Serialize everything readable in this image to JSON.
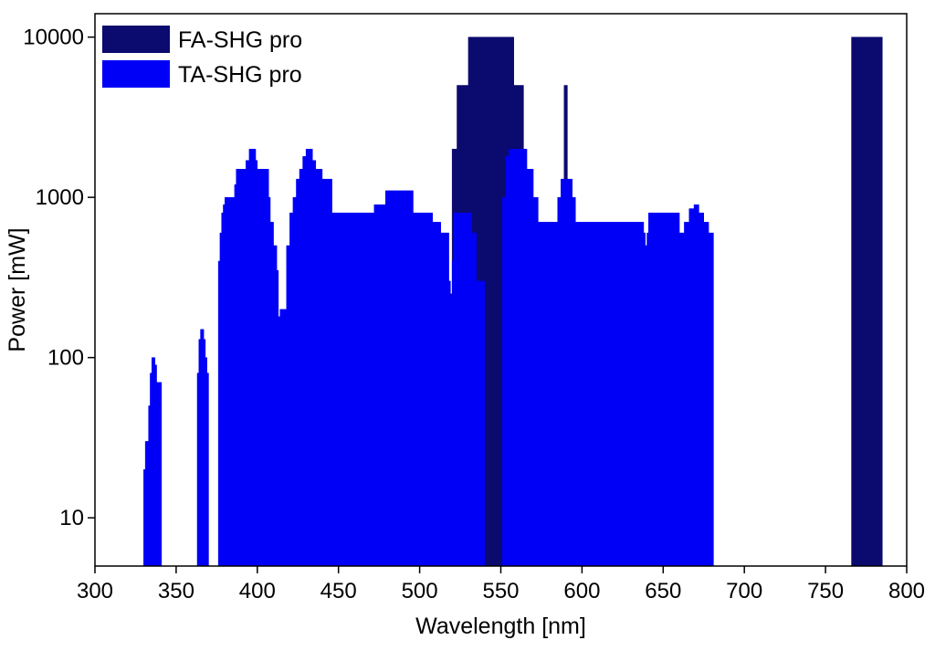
{
  "chart_data": {
    "type": "area",
    "title": "",
    "xlabel": "Wavelength [nm]",
    "ylabel": "Power [mW]",
    "xlim": [
      300,
      800
    ],
    "ylim": [
      5,
      14000
    ],
    "yscale": "log",
    "grid": false,
    "legend_position": "top-left",
    "x_ticks": [
      300,
      350,
      400,
      450,
      500,
      550,
      600,
      650,
      700,
      750,
      800
    ],
    "x_tick_labels": [
      "300",
      "350",
      "400",
      "450",
      "500",
      "550",
      "600",
      "650",
      "700",
      "750",
      "800"
    ],
    "y_ticks": [
      10,
      100,
      1000,
      10000
    ],
    "y_tick_labels": [
      "10",
      "100",
      "1000",
      "10000"
    ],
    "series": [
      {
        "name": "FA-SHG pro",
        "color": "#0b0a6e",
        "segments": [
          [
            [
              520,
              2000
            ],
            [
              523,
              5000
            ],
            [
              526,
              5000
            ],
            [
              530,
              10000
            ],
            [
              555,
              10000
            ],
            [
              558,
              5000
            ],
            [
              561,
              5000
            ],
            [
              564,
              2000
            ],
            [
              566,
              800
            ],
            [
              570,
              800
            ]
          ],
          [
            [
              588,
              1300
            ],
            [
              589,
              5000
            ],
            [
              590,
              5000
            ],
            [
              591,
              1300
            ]
          ],
          [
            [
              766,
              10000
            ],
            [
              785,
              10000
            ]
          ]
        ]
      },
      {
        "name": "TA-SHG pro",
        "color": "#0000f6",
        "segments": [
          [
            [
              330,
              20
            ],
            [
              331,
              30
            ],
            [
              333,
              50
            ],
            [
              334,
              80
            ],
            [
              335,
              100
            ],
            [
              336,
              100
            ],
            [
              337,
              90
            ],
            [
              338,
              70
            ],
            [
              340,
              70
            ],
            [
              341,
              5
            ]
          ],
          [
            [
              363,
              80
            ],
            [
              364,
              130
            ],
            [
              365,
              150
            ],
            [
              366,
              150
            ],
            [
              367,
              130
            ],
            [
              368,
              100
            ],
            [
              369,
              80
            ],
            [
              370,
              5
            ]
          ],
          [
            [
              376,
              400
            ],
            [
              377,
              600
            ],
            [
              378,
              800
            ],
            [
              379,
              900
            ],
            [
              380,
              1000
            ],
            [
              385,
              1000
            ],
            [
              386,
              1200
            ],
            [
              387,
              1500
            ],
            [
              390,
              1500
            ],
            [
              393,
              1700
            ],
            [
              395,
              2000
            ],
            [
              397,
              2000
            ],
            [
              399,
              1700
            ],
            [
              400,
              1500
            ],
            [
              406,
              1500
            ],
            [
              407,
              1000
            ],
            [
              408,
              700
            ],
            [
              410,
              500
            ],
            [
              412,
              350
            ],
            [
              413,
              180
            ],
            [
              414,
              200
            ],
            [
              416,
              200
            ],
            [
              418,
              500
            ],
            [
              420,
              800
            ],
            [
              422,
              1000
            ],
            [
              424,
              1300
            ],
            [
              426,
              1500
            ],
            [
              428,
              1800
            ],
            [
              430,
              2000
            ],
            [
              432,
              2000
            ],
            [
              434,
              1700
            ],
            [
              436,
              1500
            ],
            [
              440,
              1300
            ],
            [
              445,
              1300
            ],
            [
              446,
              800
            ],
            [
              470,
              800
            ],
            [
              472,
              900
            ],
            [
              476,
              900
            ],
            [
              479,
              1100
            ],
            [
              496,
              1100
            ],
            [
              496,
              800
            ],
            [
              506,
              800
            ],
            [
              508,
              700
            ],
            [
              512,
              700
            ],
            [
              513,
              600
            ],
            [
              516,
              600
            ],
            [
              518,
              300
            ],
            [
              519,
              250
            ],
            [
              520,
              400
            ],
            [
              521,
              800
            ],
            [
              531,
              800
            ],
            [
              532,
              600
            ],
            [
              535,
              300
            ],
            [
              538,
              300
            ],
            [
              540,
              5
            ]
          ],
          [
            [
              550,
              5
            ],
            [
              551,
              1000
            ],
            [
              553,
              1800
            ],
            [
              555,
              2000
            ],
            [
              563,
              2000
            ],
            [
              566,
              1500
            ],
            [
              570,
              1000
            ],
            [
              573,
              700
            ],
            [
              583,
              700
            ],
            [
              585,
              1000
            ],
            [
              587,
              1300
            ],
            [
              593,
              1300
            ],
            [
              594,
              1000
            ],
            [
              596,
              700
            ],
            [
              637,
              700
            ],
            [
              638,
              600
            ],
            [
              639,
              500
            ],
            [
              640,
              600
            ],
            [
              641,
              800
            ],
            [
              657,
              800
            ],
            [
              660,
              600
            ],
            [
              663,
              700
            ],
            [
              666,
              850
            ],
            [
              669,
              900
            ],
            [
              672,
              800
            ],
            [
              675,
              700
            ],
            [
              678,
              600
            ],
            [
              681,
              500
            ]
          ]
        ]
      }
    ]
  }
}
